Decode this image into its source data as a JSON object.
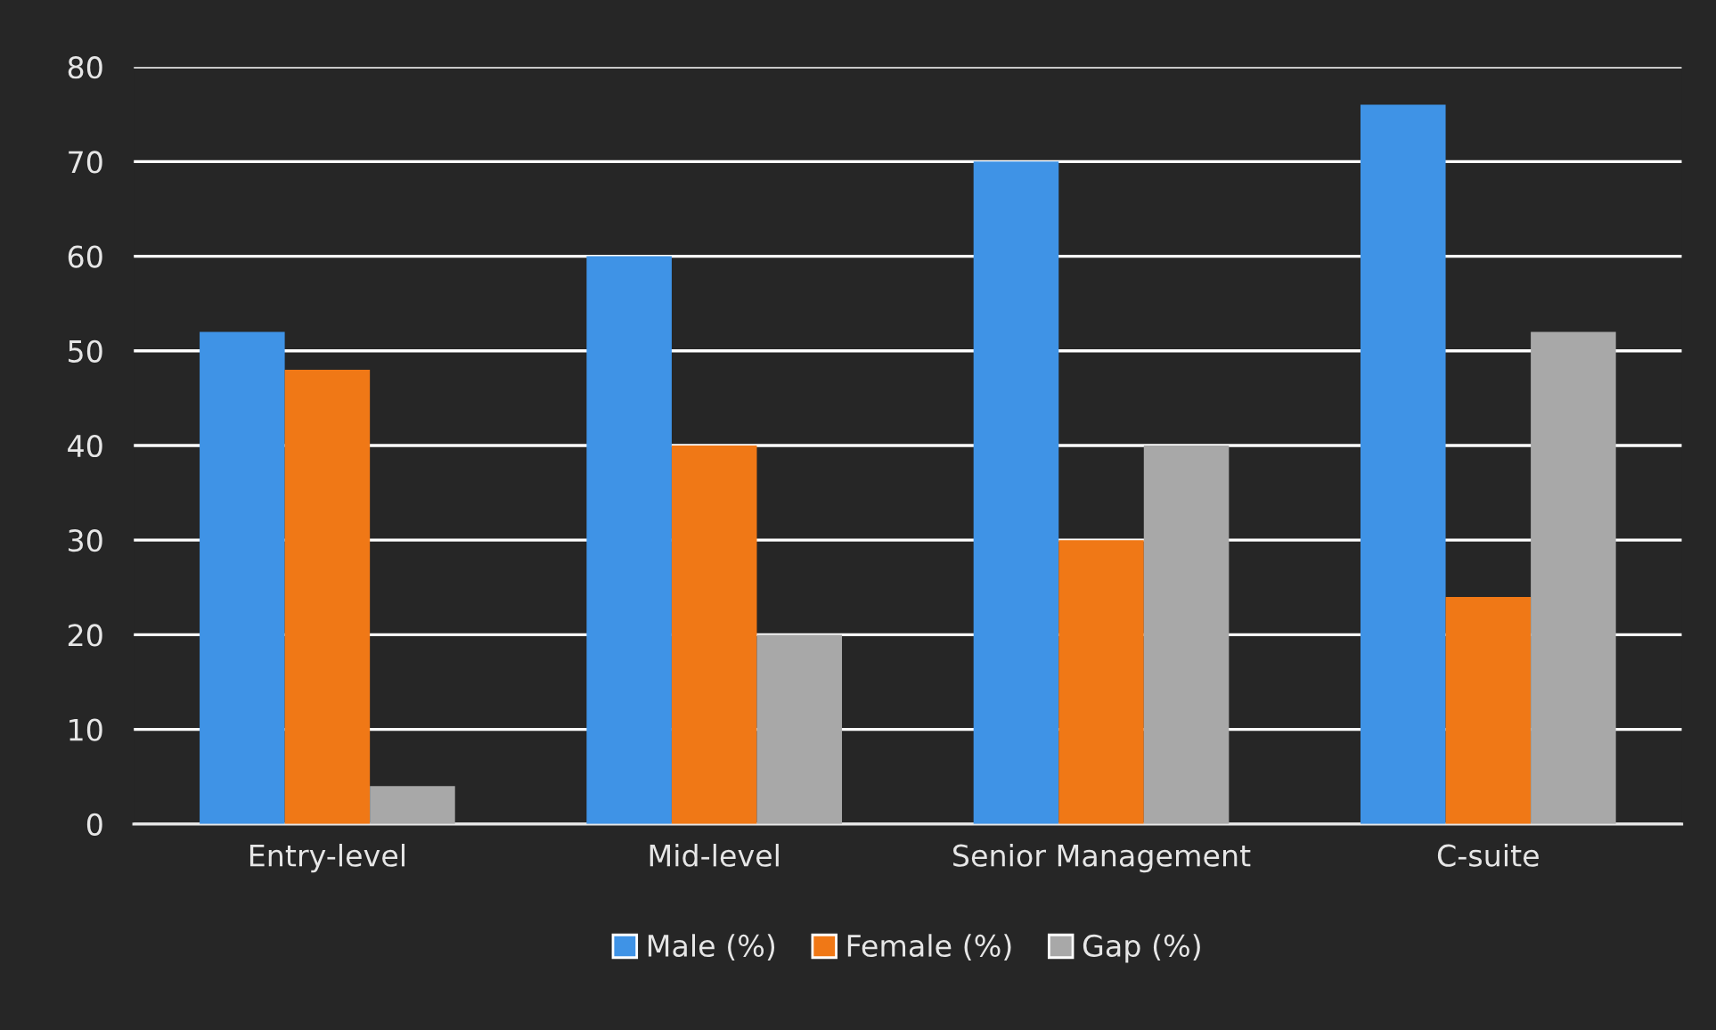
{
  "chart_data": {
    "type": "bar",
    "categories": [
      "Entry-level",
      "Mid-level",
      "Senior Management",
      "C-suite"
    ],
    "series": [
      {
        "name": "Male (%)",
        "color": "#3f93e6",
        "values": [
          52,
          60,
          70,
          76
        ]
      },
      {
        "name": "Female (%)",
        "color": "#f07816",
        "values": [
          48,
          40,
          30,
          24
        ]
      },
      {
        "name": "Gap (%)",
        "color": "#a8a8a8",
        "values": [
          4,
          20,
          40,
          52
        ]
      }
    ],
    "ylim": [
      0,
      80
    ],
    "yticks": [
      0,
      10,
      20,
      30,
      40,
      50,
      60,
      70,
      80
    ],
    "grid": "y",
    "legend": "bottom"
  }
}
